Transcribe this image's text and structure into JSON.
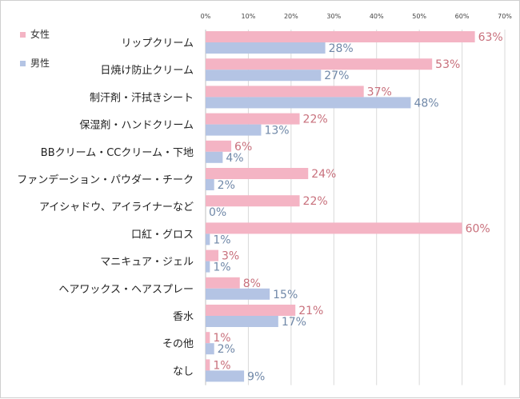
{
  "chart_data": {
    "type": "bar",
    "orientation": "horizontal",
    "categories": [
      "リップクリーム",
      "日焼け防止クリーム",
      "制汗剤・汗拭きシート",
      "保湿剤・ハンドクリーム",
      "BBクリーム・CCクリーム・下地",
      "ファンデーション・パウダー・チーク",
      "アイシャドウ、アイライナーなど",
      "口紅・グロス",
      "マニキュア・ジェル",
      "ヘアワックス・ヘアスプレー",
      "香水",
      "その他",
      "なし"
    ],
    "series": [
      {
        "name": "女性",
        "color": "#f4b4c4",
        "label_color": "#c8707c",
        "values": [
          63,
          53,
          37,
          22,
          6,
          24,
          22,
          60,
          3,
          8,
          21,
          1,
          1
        ],
        "labels": [
          "63%",
          "53%",
          "37%",
          "22%",
          "6%",
          "24%",
          "22%",
          "60%",
          "3%",
          "8%",
          "21%",
          "1%",
          "1%"
        ]
      },
      {
        "name": "男性",
        "color": "#b4c4e4",
        "label_color": "#7088a8",
        "values": [
          28,
          27,
          48,
          13,
          4,
          2,
          0,
          1,
          1,
          15,
          17,
          2,
          9
        ],
        "labels": [
          "28%",
          "27%",
          "48%",
          "13%",
          "4%",
          "2%",
          "0%",
          "1%",
          "1%",
          "15%",
          "17%",
          "2%",
          "9%"
        ]
      }
    ],
    "xlim": [
      0,
      70
    ],
    "xticks": [
      "0%",
      "10%",
      "20%",
      "30%",
      "40%",
      "50%",
      "60%",
      "70%"
    ],
    "grid": true,
    "legend_position": "top-left"
  }
}
